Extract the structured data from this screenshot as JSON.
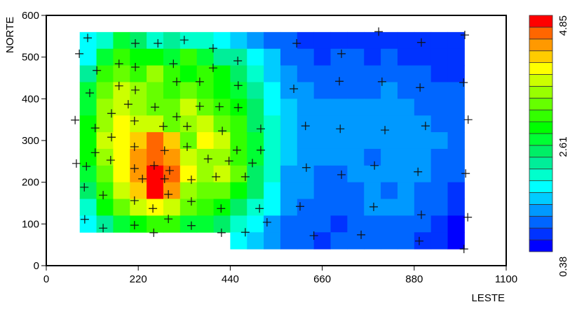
{
  "chart_data": {
    "type": "heatmap",
    "xlabel": "LESTE",
    "ylabel": "NORTE",
    "xlim": [
      0,
      1100
    ],
    "ylim": [
      0,
      600
    ],
    "x_ticks": [
      "0",
      "220",
      "440",
      "660",
      "880",
      "1100"
    ],
    "y_ticks": [
      "0",
      "100",
      "200",
      "300",
      "400",
      "500",
      "600"
    ],
    "colorbar": {
      "min": 0.38,
      "max": 4.85,
      "labels": [
        "4.85",
        "2.61",
        "0.38"
      ],
      "colors": [
        "#0000ff",
        "#0033ff",
        "#0066ff",
        "#0099ff",
        "#00ccff",
        "#00ffff",
        "#00ffcc",
        "#00ee99",
        "#00ee66",
        "#00ff33",
        "#00ff00",
        "#33ff00",
        "#66ff00",
        "#99ff00",
        "#ccff00",
        "#ffff00",
        "#ffcc00",
        "#ff9900",
        "#ff6600",
        "#ff0000"
      ]
    },
    "grid": {
      "x_start": 80,
      "cell_size": 40,
      "y_top": 560,
      "class_code": "0-9 then a-j = color class index 0..19 (low to high); '.' = no data",
      "rows": [
        "569867665432211111111110",
        "59baa9b97754221221211110",
        "7bcbdbaba8643222222221110",
        "9cedcbcba9753322223222221",
        "9dedccecba8543333333222 1",
        "adfeecdecb8643333333322 1",
        "aefgigcfeb9643333333332 1",
        "adfhihedd b964333323332 2",
        "9cfhjifdec8633223333322 1",
        "8begjhdcca853322232322 1",
        "6acefecba86532222333221 1",
        "579abb99865322212222210",
        ".........54322122222110"
      ]
    },
    "sample_points": [
      [
        99,
        546
      ],
      [
        79,
        508
      ],
      [
        213,
        533
      ],
      [
        267,
        533
      ],
      [
        330,
        541
      ],
      [
        399,
        521
      ],
      [
        458,
        491
      ],
      [
        121,
        468
      ],
      [
        174,
        484
      ],
      [
        213,
        476
      ],
      [
        304,
        484
      ],
      [
        399,
        474
      ],
      [
        174,
        431
      ],
      [
        213,
        421
      ],
      [
        312,
        441
      ],
      [
        367,
        441
      ],
      [
        459,
        432
      ],
      [
        104,
        414
      ],
      [
        196,
        387
      ],
      [
        260,
        380
      ],
      [
        367,
        382
      ],
      [
        414,
        381
      ],
      [
        459,
        379
      ],
      [
        156,
        365
      ],
      [
        69,
        349
      ],
      [
        211,
        347
      ],
      [
        312,
        357
      ],
      [
        117,
        330
      ],
      [
        280,
        334
      ],
      [
        337,
        334
      ],
      [
        421,
        323
      ],
      [
        513,
        328
      ],
      [
        156,
        308
      ],
      [
        211,
        285
      ],
      [
        117,
        271
      ],
      [
        283,
        276
      ],
      [
        337,
        285
      ],
      [
        154,
        253
      ],
      [
        72,
        245
      ],
      [
        96,
        238
      ],
      [
        211,
        233
      ],
      [
        258,
        240
      ],
      [
        295,
        228
      ],
      [
        230,
        208
      ],
      [
        283,
        208
      ],
      [
        347,
        206
      ],
      [
        406,
        213
      ],
      [
        476,
        213
      ],
      [
        387,
        256
      ],
      [
        437,
        251
      ],
      [
        493,
        246
      ],
      [
        456,
        277
      ],
      [
        513,
        277
      ],
      [
        91,
        188
      ],
      [
        136,
        169
      ],
      [
        211,
        156
      ],
      [
        292,
        171
      ],
      [
        347,
        154
      ],
      [
        255,
        137
      ],
      [
        418,
        137
      ],
      [
        510,
        137
      ],
      [
        607,
        142
      ],
      [
        622,
        235
      ],
      [
        92,
        111
      ],
      [
        136,
        90
      ],
      [
        211,
        97
      ],
      [
        292,
        112
      ],
      [
        347,
        96
      ],
      [
        528,
        104
      ],
      [
        257,
        79
      ],
      [
        419,
        79
      ],
      [
        476,
        80
      ],
      [
        640,
        72
      ],
      [
        706,
        218
      ],
      [
        785,
        240
      ],
      [
        889,
        225
      ],
      [
        1003,
        221
      ],
      [
        783,
        141
      ],
      [
        897,
        122
      ],
      [
        1008,
        116
      ],
      [
        753,
        74
      ],
      [
        892,
        59
      ],
      [
        999,
        40
      ],
      [
        795,
        561
      ],
      [
        1001,
        553
      ],
      [
        599,
        533
      ],
      [
        706,
        508
      ],
      [
        897,
        535
      ],
      [
        701,
        442
      ],
      [
        803,
        441
      ],
      [
        894,
        427
      ],
      [
        592,
        424
      ],
      [
        998,
        439
      ],
      [
        1009,
        350
      ],
      [
        620,
        335
      ],
      [
        703,
        328
      ],
      [
        810,
        325
      ],
      [
        907,
        335
      ]
    ]
  }
}
